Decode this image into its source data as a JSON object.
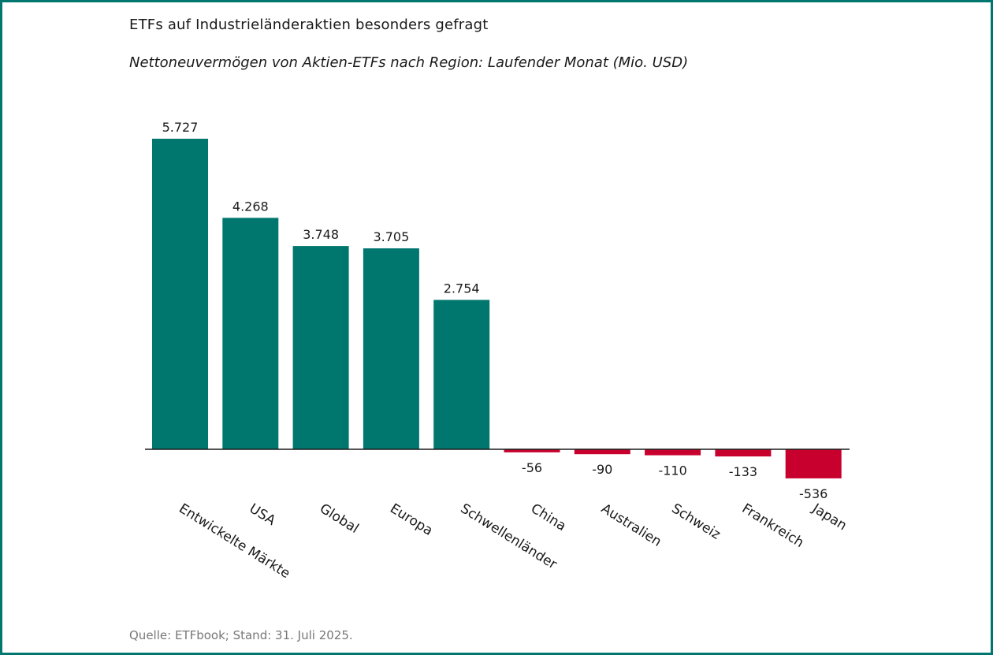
{
  "header": {
    "title": "ETFs auf Industrieländeraktien besonders gefragt",
    "subtitle": "Nettoneuvermögen von Aktien-ETFs nach Region: Laufender Monat (Mio. USD)"
  },
  "footer": {
    "source_label": "Quelle:",
    "source_text": " ETFbook; Stand: 31. Juli 2025."
  },
  "colors": {
    "frame": "#00776e",
    "positive": "#00776e",
    "negative": "#c8002d",
    "axis": "#1a1a1a"
  },
  "chart_data": {
    "type": "bar",
    "categories": [
      "Entwickelte Märkte",
      "USA",
      "Global",
      "Europa",
      "Schwellenländer",
      "China",
      "Australien",
      "Schweiz",
      "Frankreich",
      "Japan"
    ],
    "values": [
      5727,
      4268,
      3748,
      3705,
      2754,
      -56,
      -90,
      -110,
      -133,
      -536
    ],
    "value_labels": [
      "5.727",
      "4.268",
      "3.748",
      "3.705",
      "2.754",
      "-56",
      "-90",
      "-110",
      "-133",
      "-536"
    ],
    "xlabel": "",
    "ylabel": "",
    "ylim": [
      -536,
      5727
    ],
    "grid": false,
    "legend": "none"
  }
}
